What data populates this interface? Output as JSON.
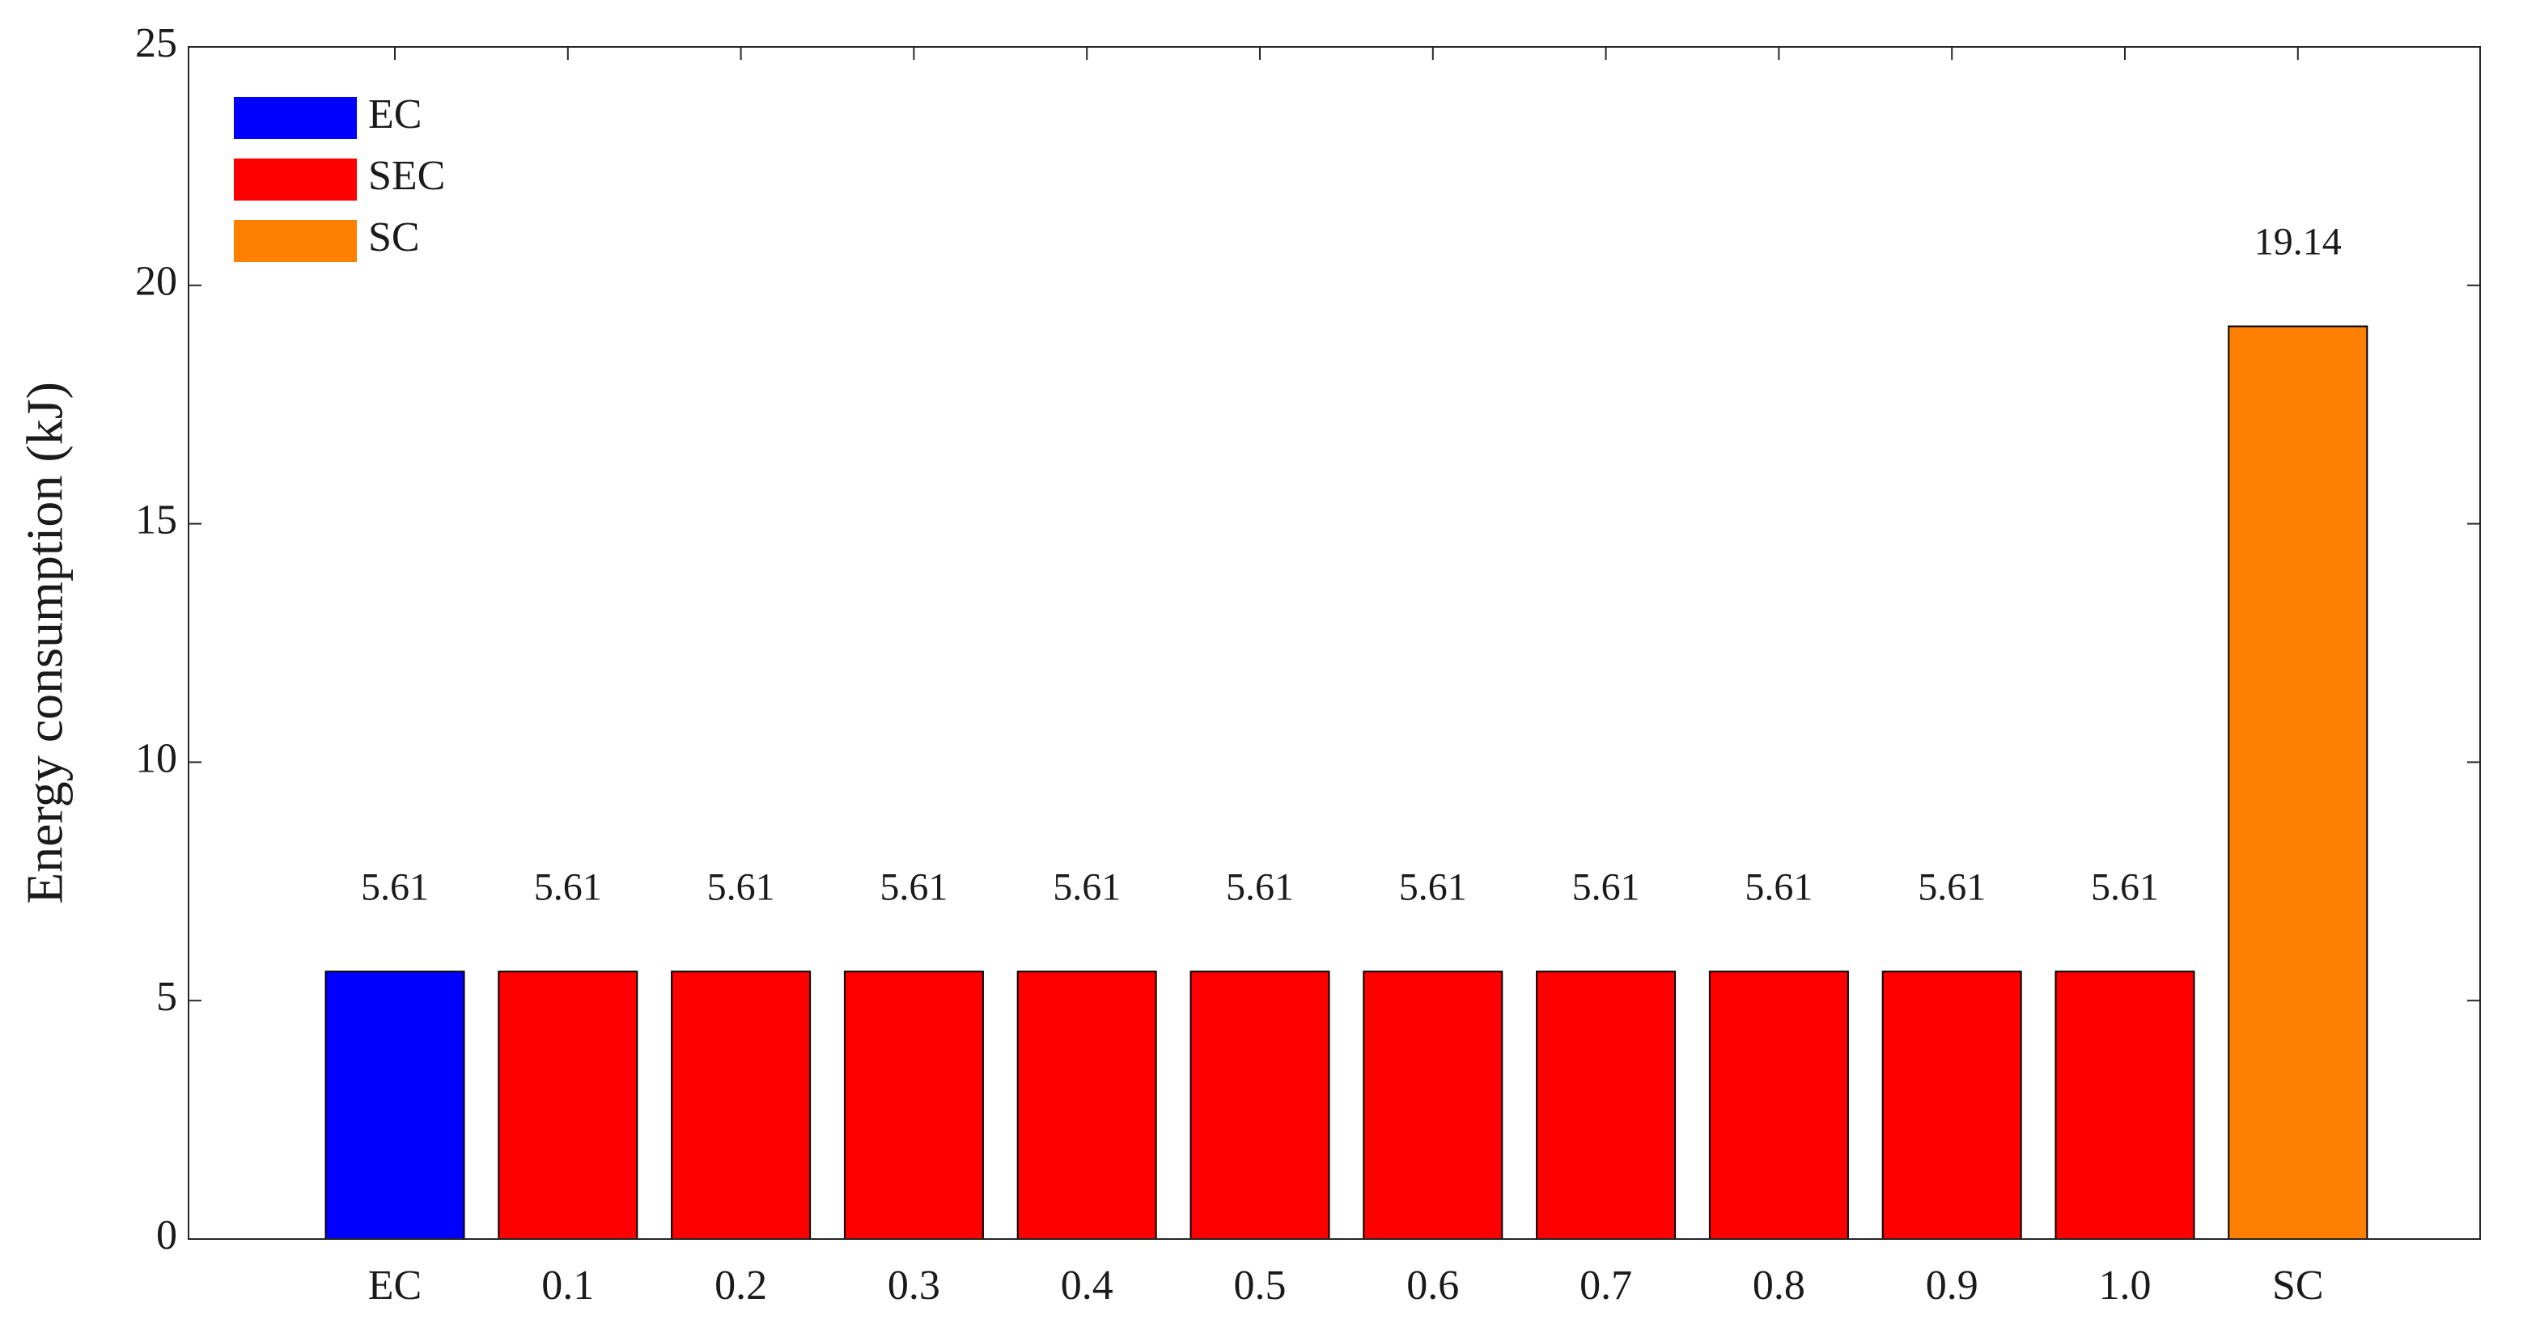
{
  "chart_data": {
    "type": "bar",
    "y_label": "Energy consumption (kJ)",
    "categories": [
      "EC",
      "0.1",
      "0.2",
      "0.3",
      "0.4",
      "0.5",
      "0.6",
      "0.7",
      "0.8",
      "0.9",
      "1.0",
      "SC"
    ],
    "series": [
      {
        "name": "EC",
        "color": "#0000ff",
        "values": [
          5.61,
          null,
          null,
          null,
          null,
          null,
          null,
          null,
          null,
          null,
          null,
          null
        ]
      },
      {
        "name": "SEC",
        "color": "#ff0000",
        "values": [
          null,
          5.61,
          5.61,
          5.61,
          5.61,
          5.61,
          5.61,
          5.61,
          5.61,
          5.61,
          5.61,
          null
        ]
      },
      {
        "name": "SC",
        "color": "#ff8000",
        "values": [
          null,
          null,
          null,
          null,
          null,
          null,
          null,
          null,
          null,
          null,
          null,
          19.14
        ]
      }
    ],
    "ylim": [
      0,
      25
    ],
    "yticks": [
      0,
      5,
      10,
      15,
      20,
      25
    ],
    "grid": false,
    "legend": "upper-left"
  }
}
